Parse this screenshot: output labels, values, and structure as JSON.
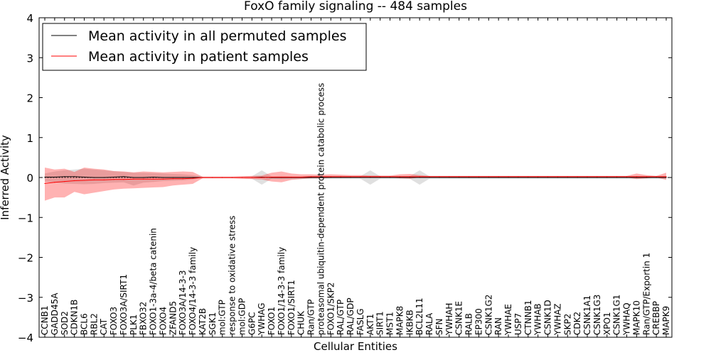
{
  "chart_data": {
    "type": "line",
    "title": "FoxO family signaling -- 484 samples",
    "xlabel": "Cellular Entities",
    "ylabel": "Inferred Activity",
    "ylim": [
      -4,
      4
    ],
    "yticks": [
      -4,
      -3,
      -2,
      -1,
      0,
      1,
      2,
      3,
      4
    ],
    "ytick_labels": [
      "−4",
      "−3",
      "−2",
      "−1",
      "0",
      "1",
      "2",
      "3",
      "4"
    ],
    "legend_placement": "top-left",
    "categories": [
      "CCNB1",
      "GADD45A",
      "SOD2",
      "CDKN1B",
      "BCL6",
      "RBL2",
      "CAT",
      "FOXO3",
      "FOXO3A/SIRT1",
      "PLK1",
      "FBXO32",
      "FOXO1-3a-4/beta catenin",
      "FOXO4",
      "ZFAND5",
      "FOXO3A/14-3-3",
      "FOXO4/14-3-3 family",
      "KAT2B",
      "SGK1",
      "mol:GTP",
      "response to oxidative stress",
      "mol:GDP",
      "G6PC",
      "YWHAG",
      "FOXO1",
      "FOXO1/14-3-3 family",
      "FOXO1/SIRT1",
      "CHUK",
      "Ran/GTP",
      "proteasomal ubiquitin-dependent protein catabolic process",
      "FOXO1/SKP2",
      "RAL/GTP",
      "RAL/GDP",
      "FASLG",
      "AKT1",
      "SIRT1",
      "MST1",
      "MAPK8",
      "IKBKB",
      "BCL2L11",
      "RALA",
      "SFN",
      "YWHAH",
      "CSNK1E",
      "RALB",
      "EP300",
      "CSNK1G2",
      "RAN",
      "YWHAE",
      "USP7",
      "CTNNB1",
      "YWHAB",
      "CSNK1D",
      "YWHAZ",
      "SKP2",
      "CDK2",
      "CSNK1A1",
      "CSNK1G3",
      "XPO1",
      "CSNK1G1",
      "YWHAQ",
      "MAPK10",
      "Ran/GTP/Exportin 1",
      "CREBBP",
      "MAPK9"
    ],
    "series": [
      {
        "name": "Mean activity in all permuted samples",
        "color": "#000000",
        "band_color": "#999999",
        "values": [
          0.01,
          0.01,
          0.02,
          0.02,
          0.01,
          0.0,
          0.0,
          0.01,
          0.02,
          0.0,
          0.0,
          0.01,
          0.0,
          0.0,
          0.0,
          0.0,
          0.0,
          0.0,
          0.0,
          0.0,
          0.0,
          0.0,
          0.01,
          0.0,
          0.0,
          0.0,
          0.0,
          0.0,
          0.0,
          0.0,
          0.0,
          0.0,
          0.0,
          0.0,
          0.0,
          0.0,
          0.0,
          0.0,
          0.0,
          0.0,
          0.0,
          0.0,
          0.0,
          0.0,
          0.0,
          0.0,
          0.0,
          0.0,
          0.0,
          0.0,
          0.0,
          0.0,
          0.0,
          0.0,
          0.0,
          0.0,
          0.0,
          0.0,
          0.0,
          0.0,
          0.0,
          0.0,
          0.0,
          0.0
        ],
        "upper": [
          0.1,
          0.15,
          0.18,
          0.2,
          0.22,
          0.2,
          0.18,
          0.16,
          0.14,
          0.12,
          0.12,
          0.11,
          0.1,
          0.09,
          0.08,
          0.06,
          0.02,
          0.02,
          0.02,
          0.02,
          0.02,
          0.03,
          0.18,
          0.03,
          0.04,
          0.03,
          0.03,
          0.03,
          0.03,
          0.03,
          0.03,
          0.03,
          0.03,
          0.18,
          0.03,
          0.03,
          0.03,
          0.03,
          0.18,
          0.03,
          0.03,
          0.03,
          0.03,
          0.03,
          0.03,
          0.03,
          0.03,
          0.03,
          0.03,
          0.03,
          0.03,
          0.03,
          0.03,
          0.03,
          0.03,
          0.03,
          0.03,
          0.03,
          0.03,
          0.03,
          0.03,
          0.03,
          0.03,
          0.03
        ],
        "lower": [
          -0.1,
          -0.13,
          -0.15,
          -0.16,
          -0.17,
          -0.16,
          -0.14,
          -0.13,
          -0.12,
          -0.2,
          -0.13,
          -0.11,
          -0.09,
          -0.08,
          -0.07,
          -0.05,
          -0.02,
          -0.02,
          -0.02,
          -0.02,
          -0.02,
          -0.03,
          -0.18,
          -0.03,
          -0.04,
          -0.03,
          -0.03,
          -0.03,
          -0.03,
          -0.03,
          -0.03,
          -0.03,
          -0.03,
          -0.18,
          -0.03,
          -0.03,
          -0.03,
          -0.03,
          -0.18,
          -0.03,
          -0.03,
          -0.03,
          -0.03,
          -0.03,
          -0.03,
          -0.03,
          -0.03,
          -0.03,
          -0.03,
          -0.03,
          -0.03,
          -0.03,
          -0.03,
          -0.03,
          -0.03,
          -0.03,
          -0.03,
          -0.03,
          -0.03,
          -0.03,
          -0.03,
          -0.03,
          -0.03,
          -0.03
        ]
      },
      {
        "name": "Mean activity in patient samples",
        "color": "#ff0000",
        "band_color": "#ff0000",
        "values": [
          -0.15,
          -0.12,
          -0.1,
          -0.08,
          -0.07,
          -0.06,
          -0.06,
          -0.05,
          -0.05,
          -0.04,
          -0.04,
          -0.04,
          -0.04,
          -0.03,
          -0.03,
          -0.02,
          0.0,
          0.0,
          0.0,
          0.0,
          0.0,
          0.0,
          0.0,
          0.01,
          0.01,
          0.01,
          0.01,
          0.02,
          0.02,
          0.02,
          0.02,
          0.02,
          0.02,
          0.02,
          0.02,
          0.02,
          0.02,
          0.02,
          0.02,
          0.02,
          0.02,
          0.02,
          0.02,
          0.02,
          0.02,
          0.02,
          0.02,
          0.02,
          0.02,
          0.02,
          0.02,
          0.02,
          0.02,
          0.02,
          0.02,
          0.02,
          0.02,
          0.02,
          0.02,
          0.02,
          0.02,
          0.02,
          0.02,
          0.02
        ],
        "upper": [
          0.25,
          0.2,
          0.22,
          0.14,
          0.25,
          0.22,
          0.2,
          0.16,
          0.15,
          0.13,
          0.15,
          0.14,
          0.13,
          0.14,
          0.15,
          0.14,
          0.02,
          0.02,
          0.02,
          0.02,
          0.03,
          0.04,
          0.05,
          0.12,
          0.15,
          0.1,
          0.08,
          0.08,
          0.07,
          0.08,
          0.07,
          0.06,
          0.06,
          0.05,
          0.05,
          0.05,
          0.08,
          0.09,
          0.06,
          0.04,
          0.04,
          0.04,
          0.04,
          0.04,
          0.04,
          0.04,
          0.04,
          0.04,
          0.04,
          0.04,
          0.04,
          0.04,
          0.04,
          0.04,
          0.04,
          0.04,
          0.04,
          0.04,
          0.04,
          0.04,
          0.1,
          0.06,
          0.04,
          0.12
        ],
        "lower": [
          -0.58,
          -0.5,
          -0.5,
          -0.36,
          -0.42,
          -0.38,
          -0.34,
          -0.3,
          -0.28,
          -0.27,
          -0.26,
          -0.25,
          -0.24,
          -0.2,
          -0.18,
          -0.16,
          -0.02,
          -0.02,
          -0.02,
          -0.02,
          -0.03,
          -0.04,
          -0.05,
          -0.1,
          -0.12,
          -0.06,
          -0.04,
          -0.02,
          -0.02,
          -0.01,
          -0.01,
          -0.01,
          0.0,
          0.0,
          0.0,
          0.0,
          -0.02,
          -0.03,
          0.0,
          0.0,
          0.0,
          0.0,
          0.0,
          0.0,
          0.0,
          0.0,
          0.0,
          0.0,
          0.0,
          0.0,
          0.0,
          0.0,
          0.0,
          0.0,
          0.0,
          0.0,
          0.0,
          0.0,
          0.0,
          0.0,
          -0.04,
          -0.02,
          0.0,
          -0.06
        ]
      }
    ],
    "reference_line": {
      "y": 0,
      "style": "dotted"
    }
  }
}
